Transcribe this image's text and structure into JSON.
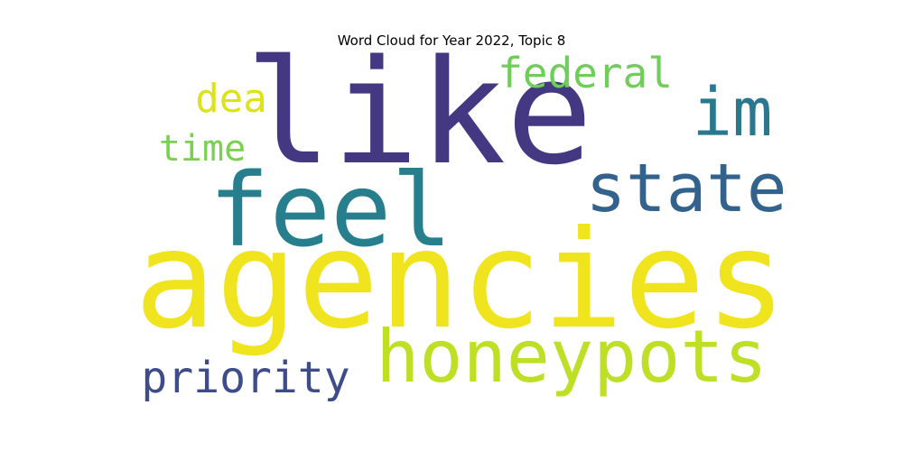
{
  "chart_data": {
    "type": "wordcloud",
    "title": "Word Cloud for Year 2022, Topic 8",
    "words": [
      {
        "text": "agencies",
        "color": "#f0e41f"
      },
      {
        "text": "like",
        "color": "#453883"
      },
      {
        "text": "feel",
        "color": "#277f8e"
      },
      {
        "text": "state",
        "color": "#33638d"
      },
      {
        "text": "honeypots",
        "color": "#bddf26"
      },
      {
        "text": "im",
        "color": "#2a788e"
      },
      {
        "text": "federal",
        "color": "#6ece58"
      },
      {
        "text": "priority",
        "color": "#3e4c8a"
      },
      {
        "text": "dea",
        "color": "#dde318"
      },
      {
        "text": "time",
        "color": "#7ad151"
      }
    ]
  }
}
